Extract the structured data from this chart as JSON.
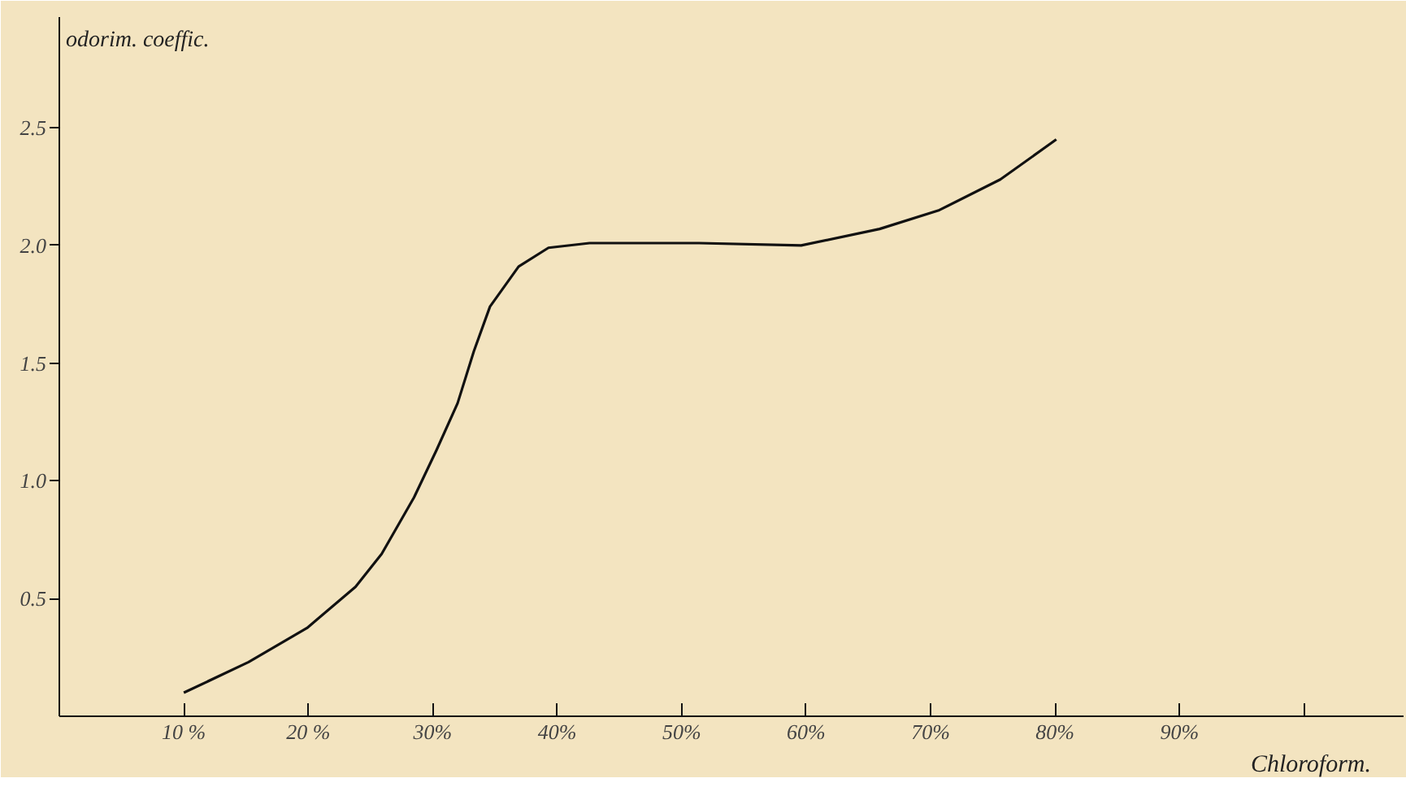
{
  "chart_data": {
    "type": "line",
    "xlabel": "Chloroform.",
    "ylabel": "odorim. coeffic.",
    "x": [
      10,
      15.2,
      19.9,
      23.8,
      25.9,
      28.5,
      30.3,
      32.0,
      33.3,
      34.6,
      36.9,
      39.3,
      42.6,
      51.4,
      59.6,
      65.9,
      70.7,
      75.6,
      80.1
    ],
    "series": [
      {
        "color": "#111111",
        "values": [
          0.1,
          0.23,
          0.375,
          0.55,
          0.69,
          0.93,
          1.13,
          1.33,
          1.55,
          1.74,
          1.91,
          1.99,
          2.01,
          2.01,
          2.0,
          2.07,
          2.15,
          2.28,
          2.45
        ]
      }
    ],
    "xlim": [
      0,
      108
    ],
    "ylim": [
      0,
      2.97
    ],
    "xticks": [
      {
        "value": 10,
        "label": "10 %"
      },
      {
        "value": 20,
        "label": "20 %"
      },
      {
        "value": 30,
        "label": "30%"
      },
      {
        "value": 40,
        "label": "40%"
      },
      {
        "value": 50,
        "label": "50%"
      },
      {
        "value": 60,
        "label": "60%"
      },
      {
        "value": 70,
        "label": "70%"
      },
      {
        "value": 80,
        "label": "80%"
      },
      {
        "value": 90,
        "label": "90%"
      },
      {
        "value": 100,
        "label": null
      }
    ],
    "yticks": [
      0.5,
      {
        "value": 1.0,
        "label": "1.0"
      },
      1.5,
      {
        "value": 2.0,
        "label": "2.0"
      },
      2.5
    ],
    "grid": false,
    "marker": "none",
    "line_style": "solid"
  }
}
